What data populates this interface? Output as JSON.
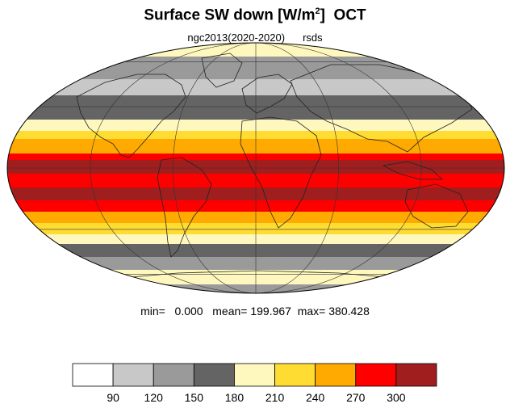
{
  "title": {
    "main": "Surface SW down [W/m",
    "sup": "2",
    "close": "]",
    "month": "OCT"
  },
  "subtitle": {
    "experiment": "ngc2013(2020-2020)",
    "variable": "rsds"
  },
  "stats": {
    "min_label": "min=",
    "min": "0.000",
    "mean_label": "mean=",
    "mean": "199.967",
    "max_label": "max=",
    "max": "380.428"
  },
  "colorbar": {
    "colors": [
      "#ffffff",
      "#c8c8c8",
      "#9a9a9a",
      "#646464",
      "#fff8be",
      "#ffdc32",
      "#ffaa00",
      "#ff0000",
      "#a01e1e"
    ],
    "tick_labels": [
      "90",
      "120",
      "150",
      "180",
      "210",
      "240",
      "270",
      "300"
    ]
  },
  "map": {
    "projection": "mollweide",
    "ocean_fill": "banded by latitude",
    "graticule": "visible"
  }
}
